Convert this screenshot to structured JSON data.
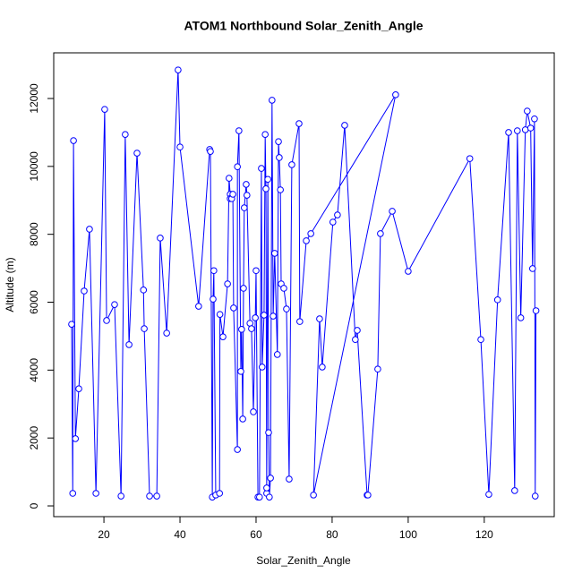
{
  "chart_data": {
    "type": "line",
    "title": "ATOM1 Northbound Solar_Zenith_Angle",
    "xlabel": "Solar_Zenith_Angle",
    "ylabel": "Altitude (m)",
    "x": [
      11.5,
      11.8,
      12.0,
      12.5,
      13.4,
      14.8,
      16.2,
      17.9,
      20.2,
      20.7,
      22.8,
      24.5,
      25.6,
      26.6,
      28.7,
      30.4,
      30.6,
      32.0,
      33.9,
      34.8,
      36.5,
      39.5,
      40.0,
      44.9,
      47.8,
      48.0,
      48.5,
      48.7,
      48.9,
      49.4,
      50.4,
      50.5,
      51.3,
      52.5,
      52.9,
      53.2,
      53.2,
      53.6,
      53.9,
      54.1,
      55.1,
      55.1,
      55.5,
      56.0,
      56.2,
      56.5,
      56.7,
      56.9,
      57.4,
      57.6,
      58.4,
      58.8,
      59.3,
      59.8,
      60.0,
      60.5,
      60.9,
      61.4,
      61.6,
      62.1,
      62.4,
      62.6,
      62.8,
      62.8,
      63.1,
      63.3,
      63.5,
      63.8,
      64.2,
      64.5,
      64.9,
      65.6,
      65.9,
      66.1,
      66.4,
      66.6,
      67.3,
      68.0,
      68.7,
      69.4,
      71.3,
      71.5,
      73.2,
      74.4,
      96.7,
      75.1,
      76.7,
      77.4,
      80.2,
      81.4,
      83.3,
      86.1,
      86.6,
      89.2,
      89.4,
      92.0,
      92.7,
      95.8,
      100.0,
      116.2,
      119.1,
      121.2,
      123.5,
      126.4,
      128.0,
      128.7,
      129.6,
      130.8,
      131.3,
      132.2,
      132.7,
      133.2,
      133.4,
      133.6
    ],
    "series": [
      {
        "color": "#0000ff",
        "values": [
          5350,
          370,
          10760,
          1980,
          3450,
          6330,
          8150,
          370,
          11680,
          5460,
          5930,
          290,
          10940,
          4750,
          10390,
          6360,
          5220,
          290,
          290,
          7890,
          5090,
          12840,
          10570,
          5880,
          10500,
          10440,
          260,
          6090,
          6930,
          320,
          370,
          5640,
          4980,
          6540,
          9650,
          9180,
          9050,
          9050,
          9180,
          5830,
          1660,
          9990,
          11050,
          3960,
          5200,
          2560,
          6410,
          8780,
          9470,
          9150,
          5380,
          5220,
          2770,
          5540,
          6930,
          260,
          260,
          9940,
          4090,
          5620,
          10940,
          9340,
          370,
          530,
          9620,
          2160,
          260,
          820,
          11950,
          5590,
          7440,
          4460,
          10730,
          10260,
          9310,
          6540,
          6410,
          5800,
          790,
          10050,
          11260,
          5430,
          7810,
          8020,
          12110,
          320,
          5510,
          4090,
          8360,
          8570,
          11210,
          4900,
          5170,
          320,
          320,
          4030,
          8020,
          8680,
          6910,
          10230,
          4900,
          340,
          6070,
          11000,
          450,
          11050,
          5540,
          11080,
          11630,
          11130,
          6990,
          11400,
          290,
          5750
        ]
      }
    ],
    "xlim": [
      6.8,
      138.4
    ],
    "xticks": [
      20,
      40,
      60,
      80,
      100,
      120
    ],
    "ylim": [
      -316,
      13345
    ],
    "yticks": [
      0,
      2000,
      4000,
      6000,
      8000,
      10000,
      12000
    ]
  }
}
